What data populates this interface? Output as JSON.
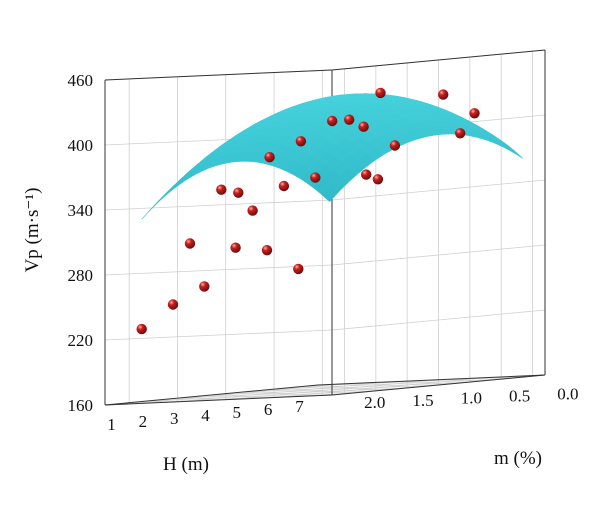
{
  "chart_data": {
    "type": "scatter",
    "subtype": "3d-surface-with-points",
    "xlabel": "H (m)",
    "ylabel": "m (%)",
    "zlabel": "Vp (m·s⁻¹)",
    "x_ticks": [
      "1",
      "2",
      "3",
      "4",
      "5",
      "6",
      "7"
    ],
    "y_ticks": [
      "0.0",
      "0.5",
      "1.0",
      "1.5",
      "2.0"
    ],
    "z_ticks": [
      "160",
      "220",
      "280",
      "340",
      "400",
      "460"
    ],
    "xlim": [
      0.5,
      7.5
    ],
    "ylim": [
      0,
      2.2
    ],
    "zlim": [
      160,
      460
    ],
    "grid": true,
    "colors": {
      "surface": "#2ec4cc",
      "surface_dark": "#1a9aa3",
      "points": "#c8201e"
    },
    "surface_model": {
      "description_free": true,
      "peak_H": 4,
      "peak_m": 0.8,
      "peak_V": 432,
      "curv_H": 5.0,
      "curv_m": 40
    },
    "points": [
      {
        "H": 1,
        "m": 2.0,
        "V": 228
      },
      {
        "H": 1,
        "m": 1.5,
        "V": 305
      },
      {
        "H": 1,
        "m": 1.0,
        "V": 350
      },
      {
        "H": 2,
        "m": 2.0,
        "V": 248
      },
      {
        "H": 2,
        "m": 1.5,
        "V": 352
      },
      {
        "H": 2,
        "m": 1.0,
        "V": 380
      },
      {
        "H": 2,
        "m": 0.0,
        "V": 360
      },
      {
        "H": 3,
        "m": 2.0,
        "V": 262
      },
      {
        "H": 3,
        "m": 1.5,
        "V": 330
      },
      {
        "H": 3,
        "m": 1.0,
        "V": 392
      },
      {
        "H": 3,
        "m": 0.5,
        "V": 410
      },
      {
        "H": 4,
        "m": 2.0,
        "V": 295
      },
      {
        "H": 4,
        "m": 1.5,
        "V": 350
      },
      {
        "H": 4,
        "m": 1.0,
        "V": 408
      },
      {
        "H": 4,
        "m": 0.5,
        "V": 432
      },
      {
        "H": 5,
        "m": 2.0,
        "V": 290
      },
      {
        "H": 5,
        "m": 1.5,
        "V": 355
      },
      {
        "H": 5,
        "m": 1.0,
        "V": 400
      },
      {
        "H": 5,
        "m": 0.0,
        "V": 390
      },
      {
        "H": 6,
        "m": 2.0,
        "V": 270
      },
      {
        "H": 6,
        "m": 1.0,
        "V": 380
      },
      {
        "H": 6,
        "m": 0.5,
        "V": 425
      },
      {
        "H": 7,
        "m": 1.5,
        "V": 348
      },
      {
        "H": 7,
        "m": 0.5,
        "V": 405
      }
    ]
  }
}
